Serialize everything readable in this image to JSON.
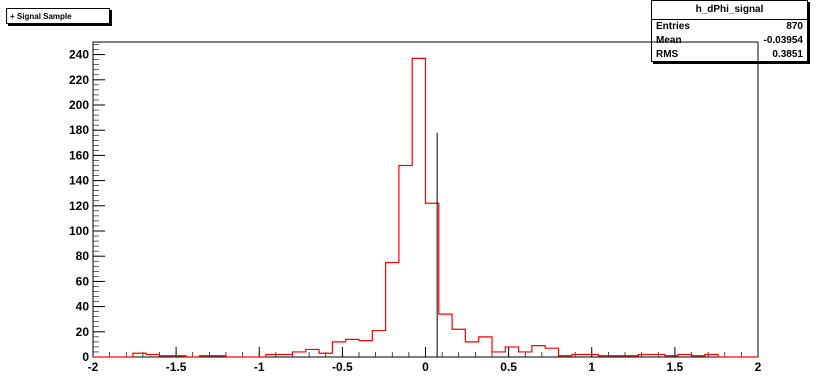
{
  "legend": {
    "entry": "Signal Sample"
  },
  "stats": {
    "title": "h_dPhi_signal",
    "rows": [
      {
        "label": "Entries",
        "value": "870"
      },
      {
        "label": "Mean",
        "value": "-0.03954"
      },
      {
        "label": "RMS",
        "value": "0.3851"
      }
    ]
  },
  "colors": {
    "signal_line": "#ff0000",
    "spike_line": "#000000",
    "frame": "#000000"
  },
  "chart_data": {
    "type": "bar",
    "title": "",
    "xlabel": "",
    "ylabel": "",
    "xlim": [
      -2,
      2
    ],
    "ylim": [
      0,
      250
    ],
    "grid": false,
    "x_ticks": [
      "-2",
      "-1.5",
      "-1",
      "-0.5",
      "0",
      "0.5",
      "1",
      "1.5",
      "2"
    ],
    "y_ticks": [
      "0",
      "20",
      "40",
      "60",
      "80",
      "100",
      "120",
      "140",
      "160",
      "180",
      "200",
      "220",
      "240"
    ],
    "series": [
      {
        "name": "Signal Sample",
        "bin_width": 0.08,
        "bin_start": -2.0,
        "values": [
          0,
          0,
          0,
          3,
          2,
          1,
          1,
          0,
          1,
          1,
          0,
          0,
          0,
          2,
          2,
          4,
          6,
          3,
          12,
          14,
          13,
          21,
          75,
          152,
          237,
          122,
          34,
          22,
          12,
          16,
          4,
          8,
          4,
          9,
          7,
          1,
          2,
          2,
          1,
          1,
          1,
          2,
          2,
          1,
          2,
          1,
          2,
          0,
          0,
          0
        ]
      },
      {
        "name": "",
        "x": [
          0.07
        ],
        "values": [
          178
        ]
      }
    ]
  }
}
